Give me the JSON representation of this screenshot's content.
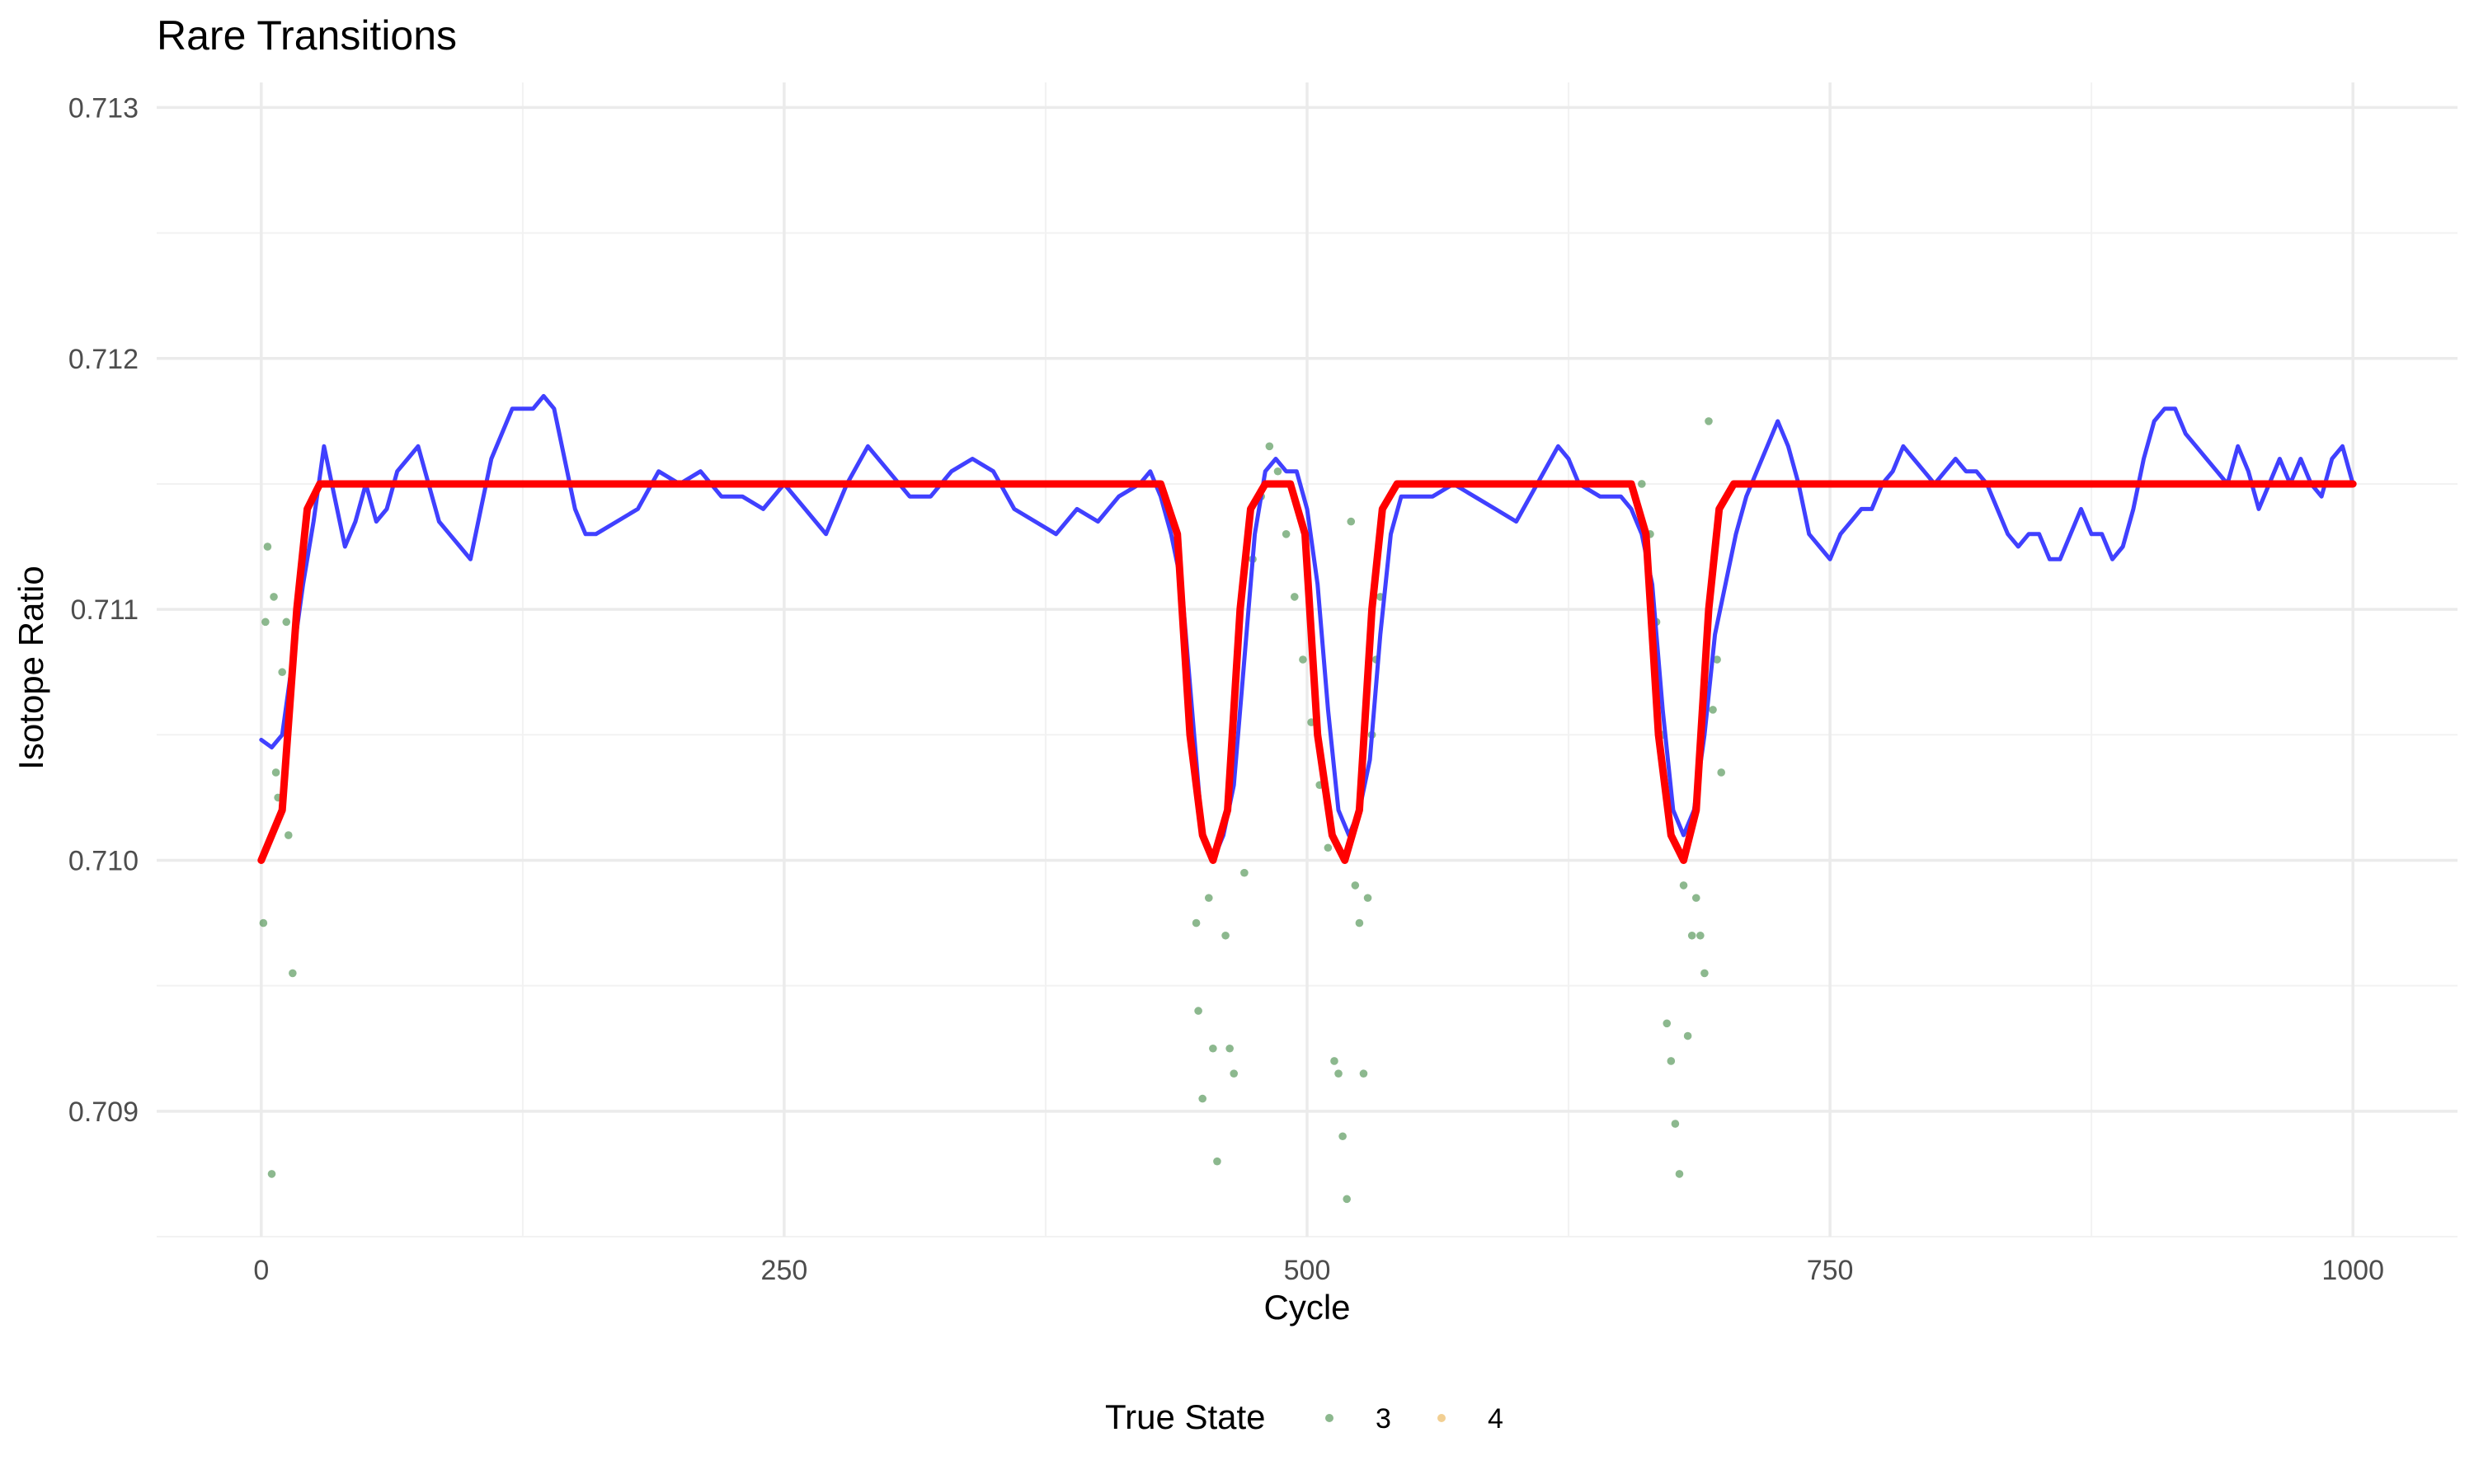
{
  "chart_data": {
    "type": "line",
    "title": "Rare Transitions",
    "xlabel": "Cycle",
    "ylabel": "Isotope Ratio",
    "xlim": [
      -50,
      1050
    ],
    "ylim": [
      0.7085,
      0.7131
    ],
    "x_ticks": [
      0,
      250,
      500,
      750,
      1000
    ],
    "x_tick_labels": [
      "0",
      "250",
      "500",
      "750",
      "1000"
    ],
    "y_ticks": [
      0.709,
      0.71,
      0.711,
      0.712,
      0.713
    ],
    "y_tick_labels": [
      "0.709",
      "0.710",
      "0.711",
      "0.712",
      "0.713"
    ],
    "grid": true,
    "legend": {
      "title": "True State",
      "position": "bottom",
      "entries": [
        {
          "label": "3",
          "color": "#2e7d32"
        },
        {
          "label": "4",
          "color": "#e8a838"
        }
      ]
    },
    "colors": {
      "state3": "#2e7d32",
      "state4": "#e8a838",
      "smoothed": "#4040ff",
      "fitted": "#ff0000"
    },
    "fitted_line": {
      "color": "#ff0000",
      "points": [
        [
          0,
          0.71
        ],
        [
          10,
          0.7102
        ],
        [
          17,
          0.711
        ],
        [
          22,
          0.7114
        ],
        [
          28,
          0.7115
        ],
        [
          430,
          0.7115
        ],
        [
          438,
          0.7113
        ],
        [
          444,
          0.7105
        ],
        [
          450,
          0.7101
        ],
        [
          455,
          0.71
        ],
        [
          462,
          0.7102
        ],
        [
          468,
          0.711
        ],
        [
          473,
          0.7114
        ],
        [
          480,
          0.7115
        ],
        [
          492,
          0.7115
        ],
        [
          499,
          0.7113
        ],
        [
          505,
          0.7105
        ],
        [
          512,
          0.7101
        ],
        [
          518,
          0.71
        ],
        [
          525,
          0.7102
        ],
        [
          531,
          0.711
        ],
        [
          536,
          0.7114
        ],
        [
          543,
          0.7115
        ],
        [
          655,
          0.7115
        ],
        [
          662,
          0.7113
        ],
        [
          668,
          0.7105
        ],
        [
          674,
          0.7101
        ],
        [
          680,
          0.71
        ],
        [
          686,
          0.7102
        ],
        [
          692,
          0.711
        ],
        [
          697,
          0.7114
        ],
        [
          704,
          0.7115
        ],
        [
          1000,
          0.7115
        ]
      ]
    },
    "smoothed_line": {
      "color": "#4040ff",
      "points": [
        [
          0,
          0.71048
        ],
        [
          5,
          0.71045
        ],
        [
          10,
          0.7105
        ],
        [
          15,
          0.7108
        ],
        [
          20,
          0.7111
        ],
        [
          25,
          0.71135
        ],
        [
          30,
          0.71165
        ],
        [
          35,
          0.71145
        ],
        [
          40,
          0.71125
        ],
        [
          45,
          0.71135
        ],
        [
          50,
          0.7115
        ],
        [
          55,
          0.71135
        ],
        [
          60,
          0.7114
        ],
        [
          65,
          0.71155
        ],
        [
          70,
          0.7116
        ],
        [
          75,
          0.71165
        ],
        [
          80,
          0.7115
        ],
        [
          85,
          0.71135
        ],
        [
          90,
          0.7113
        ],
        [
          95,
          0.71125
        ],
        [
          100,
          0.7112
        ],
        [
          105,
          0.7114
        ],
        [
          110,
          0.7116
        ],
        [
          115,
          0.7117
        ],
        [
          120,
          0.7118
        ],
        [
          125,
          0.7118
        ],
        [
          130,
          0.7118
        ],
        [
          135,
          0.71185
        ],
        [
          140,
          0.7118
        ],
        [
          145,
          0.7116
        ],
        [
          150,
          0.7114
        ],
        [
          155,
          0.7113
        ],
        [
          160,
          0.7113
        ],
        [
          170,
          0.71135
        ],
        [
          180,
          0.7114
        ],
        [
          190,
          0.71155
        ],
        [
          200,
          0.7115
        ],
        [
          210,
          0.71155
        ],
        [
          220,
          0.71145
        ],
        [
          230,
          0.71145
        ],
        [
          240,
          0.7114
        ],
        [
          250,
          0.7115
        ],
        [
          260,
          0.7114
        ],
        [
          270,
          0.7113
        ],
        [
          280,
          0.7115
        ],
        [
          290,
          0.71165
        ],
        [
          300,
          0.71155
        ],
        [
          310,
          0.71145
        ],
        [
          320,
          0.71145
        ],
        [
          330,
          0.71155
        ],
        [
          340,
          0.7116
        ],
        [
          350,
          0.71155
        ],
        [
          360,
          0.7114
        ],
        [
          370,
          0.71135
        ],
        [
          380,
          0.7113
        ],
        [
          390,
          0.7114
        ],
        [
          400,
          0.71135
        ],
        [
          410,
          0.71145
        ],
        [
          420,
          0.7115
        ],
        [
          425,
          0.71155
        ],
        [
          430,
          0.71145
        ],
        [
          435,
          0.7113
        ],
        [
          440,
          0.7111
        ],
        [
          445,
          0.7106
        ],
        [
          450,
          0.7101
        ],
        [
          455,
          0.71
        ],
        [
          460,
          0.7101
        ],
        [
          465,
          0.7103
        ],
        [
          470,
          0.7108
        ],
        [
          475,
          0.7113
        ],
        [
          480,
          0.71155
        ],
        [
          485,
          0.7116
        ],
        [
          490,
          0.71155
        ],
        [
          495,
          0.71155
        ],
        [
          500,
          0.7114
        ],
        [
          505,
          0.7111
        ],
        [
          510,
          0.7106
        ],
        [
          515,
          0.7102
        ],
        [
          520,
          0.7101
        ],
        [
          525,
          0.7102
        ],
        [
          530,
          0.7104
        ],
        [
          535,
          0.7109
        ],
        [
          540,
          0.7113
        ],
        [
          545,
          0.71145
        ],
        [
          550,
          0.71145
        ],
        [
          560,
          0.71145
        ],
        [
          570,
          0.7115
        ],
        [
          580,
          0.71145
        ],
        [
          590,
          0.7114
        ],
        [
          600,
          0.71135
        ],
        [
          610,
          0.7115
        ],
        [
          620,
          0.71165
        ],
        [
          625,
          0.7116
        ],
        [
          630,
          0.7115
        ],
        [
          640,
          0.71145
        ],
        [
          650,
          0.71145
        ],
        [
          655,
          0.7114
        ],
        [
          660,
          0.7113
        ],
        [
          665,
          0.7111
        ],
        [
          670,
          0.7106
        ],
        [
          675,
          0.7102
        ],
        [
          680,
          0.7101
        ],
        [
          685,
          0.7102
        ],
        [
          690,
          0.7105
        ],
        [
          695,
          0.7109
        ],
        [
          700,
          0.7111
        ],
        [
          705,
          0.7113
        ],
        [
          710,
          0.71145
        ],
        [
          715,
          0.71155
        ],
        [
          720,
          0.71165
        ],
        [
          725,
          0.71175
        ],
        [
          730,
          0.71165
        ],
        [
          735,
          0.7115
        ],
        [
          740,
          0.7113
        ],
        [
          745,
          0.71125
        ],
        [
          750,
          0.7112
        ],
        [
          755,
          0.7113
        ],
        [
          760,
          0.71135
        ],
        [
          765,
          0.7114
        ],
        [
          770,
          0.7114
        ],
        [
          775,
          0.7115
        ],
        [
          780,
          0.71155
        ],
        [
          785,
          0.71165
        ],
        [
          790,
          0.7116
        ],
        [
          795,
          0.71155
        ],
        [
          800,
          0.7115
        ],
        [
          805,
          0.71155
        ],
        [
          810,
          0.7116
        ],
        [
          815,
          0.71155
        ],
        [
          820,
          0.71155
        ],
        [
          825,
          0.7115
        ],
        [
          830,
          0.7114
        ],
        [
          835,
          0.7113
        ],
        [
          840,
          0.71125
        ],
        [
          845,
          0.7113
        ],
        [
          850,
          0.7113
        ],
        [
          855,
          0.7112
        ],
        [
          860,
          0.7112
        ],
        [
          865,
          0.7113
        ],
        [
          870,
          0.7114
        ],
        [
          875,
          0.7113
        ],
        [
          880,
          0.7113
        ],
        [
          885,
          0.7112
        ],
        [
          890,
          0.71125
        ],
        [
          895,
          0.7114
        ],
        [
          900,
          0.7116
        ],
        [
          905,
          0.71175
        ],
        [
          910,
          0.7118
        ],
        [
          915,
          0.7118
        ],
        [
          920,
          0.7117
        ],
        [
          925,
          0.71165
        ],
        [
          930,
          0.7116
        ],
        [
          935,
          0.71155
        ],
        [
          940,
          0.7115
        ],
        [
          945,
          0.71165
        ],
        [
          950,
          0.71155
        ],
        [
          955,
          0.7114
        ],
        [
          960,
          0.7115
        ],
        [
          965,
          0.7116
        ],
        [
          970,
          0.7115
        ],
        [
          975,
          0.7116
        ],
        [
          980,
          0.7115
        ],
        [
          985,
          0.71145
        ],
        [
          990,
          0.7116
        ],
        [
          995,
          0.71165
        ],
        [
          1000,
          0.7115
        ]
      ]
    },
    "series": [
      {
        "name": "3",
        "color": "#2e7d32",
        "points": [
          [
            1,
            0.70975
          ],
          [
            2,
            0.71095
          ],
          [
            3,
            0.71125
          ],
          [
            5,
            0.70875
          ],
          [
            6,
            0.71105
          ],
          [
            7,
            0.71035
          ],
          [
            8,
            0.71025
          ],
          [
            10,
            0.71075
          ],
          [
            12,
            0.71095
          ],
          [
            13,
            0.7101
          ],
          [
            15,
            0.70955
          ],
          [
            447,
            0.70975
          ],
          [
            448,
            0.7094
          ],
          [
            450,
            0.70905
          ],
          [
            453,
            0.70985
          ],
          [
            455,
            0.70925
          ],
          [
            457,
            0.7088
          ],
          [
            459,
            0.7101
          ],
          [
            461,
            0.7097
          ],
          [
            463,
            0.70925
          ],
          [
            465,
            0.70915
          ],
          [
            470,
            0.70995
          ],
          [
            474,
            0.7112
          ],
          [
            478,
            0.71145
          ],
          [
            482,
            0.71165
          ],
          [
            486,
            0.71155
          ],
          [
            490,
            0.7113
          ],
          [
            494,
            0.71105
          ],
          [
            498,
            0.7108
          ],
          [
            502,
            0.71055
          ],
          [
            506,
            0.7103
          ],
          [
            510,
            0.71005
          ],
          [
            513,
            0.7092
          ],
          [
            515,
            0.70915
          ],
          [
            517,
            0.7089
          ],
          [
            519,
            0.70865
          ],
          [
            521,
            0.71135
          ],
          [
            523,
            0.7099
          ],
          [
            525,
            0.70975
          ],
          [
            527,
            0.70915
          ],
          [
            529,
            0.70985
          ],
          [
            531,
            0.7105
          ],
          [
            533,
            0.7108
          ],
          [
            535,
            0.71105
          ],
          [
            660,
            0.7115
          ],
          [
            664,
            0.7113
          ],
          [
            667,
            0.71095
          ],
          [
            670,
            0.7105
          ],
          [
            672,
            0.70935
          ],
          [
            674,
            0.7092
          ],
          [
            676,
            0.70895
          ],
          [
            678,
            0.70875
          ],
          [
            680,
            0.7099
          ],
          [
            682,
            0.7093
          ],
          [
            684,
            0.7097
          ],
          [
            686,
            0.70985
          ],
          [
            688,
            0.7097
          ],
          [
            690,
            0.70955
          ],
          [
            692,
            0.71175
          ],
          [
            694,
            0.7106
          ],
          [
            696,
            0.7108
          ],
          [
            698,
            0.71035
          ]
        ]
      },
      {
        "name": "4",
        "color": "#e8a838",
        "points": []
      }
    ]
  }
}
